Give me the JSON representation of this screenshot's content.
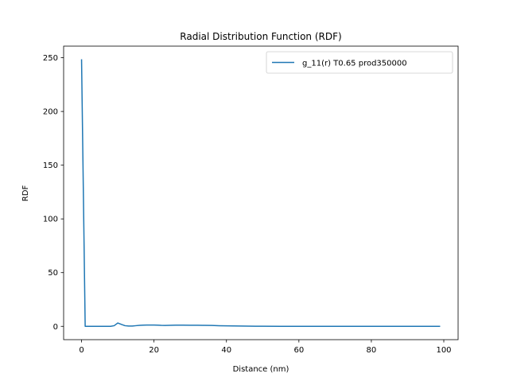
{
  "chart_data": {
    "type": "line",
    "title": "Radial Distribution Function (RDF)",
    "xlabel": "Distance (nm)",
    "ylabel": "RDF",
    "xlim": [
      -4.95,
      103.95
    ],
    "ylim": [
      -12.4,
      260.8
    ],
    "xticks": [
      0,
      20,
      40,
      60,
      80,
      100
    ],
    "yticks": [
      0,
      50,
      100,
      150,
      200,
      250
    ],
    "grid": false,
    "legend_position": "top-right",
    "series": [
      {
        "name": "g_11(r) T0.65 prod350000",
        "color": "#1f77b4",
        "x": [
          0,
          1,
          2,
          3,
          4,
          5,
          6,
          7,
          8,
          9,
          10,
          11,
          12,
          13,
          14,
          15,
          16,
          17,
          18,
          19,
          20,
          21,
          22,
          23,
          24,
          25,
          26,
          27,
          28,
          30,
          32,
          34,
          36,
          38,
          40,
          42,
          44,
          46,
          48,
          50,
          55,
          60,
          65,
          70,
          75,
          80,
          85,
          90,
          95,
          99
        ],
        "y": [
          248.6,
          0,
          0,
          0,
          0,
          0,
          0,
          0,
          0,
          0.6,
          3.1,
          1.8,
          0.6,
          0.3,
          0.3,
          0.6,
          0.9,
          1.1,
          1.2,
          1.2,
          1.2,
          1.1,
          0.9,
          0.8,
          0.9,
          1.0,
          1.1,
          1.1,
          1.1,
          1.0,
          1.0,
          0.9,
          0.8,
          0.6,
          0.5,
          0.4,
          0.3,
          0.2,
          0.1,
          0.05,
          0,
          0,
          0,
          0,
          0,
          0,
          0,
          0,
          0,
          0
        ]
      }
    ]
  }
}
